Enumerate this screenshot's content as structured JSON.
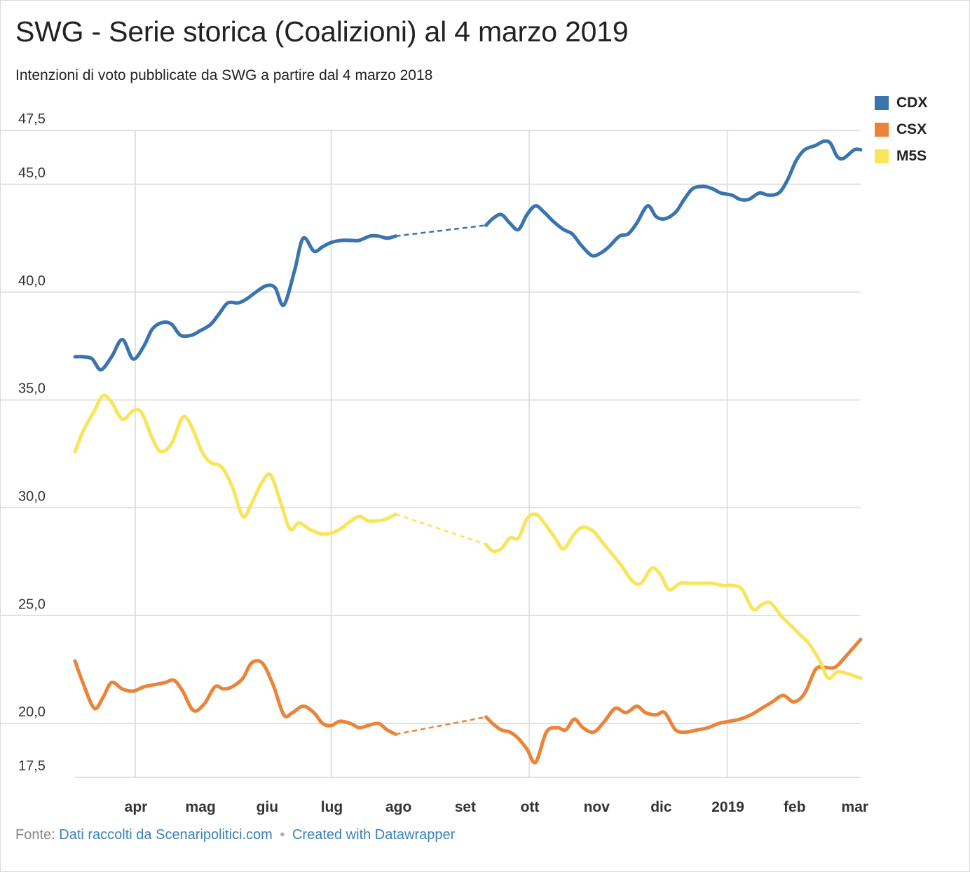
{
  "title": "SWG - Serie storica (Coalizioni) al 4 marzo 2019",
  "subtitle": "Intenzioni di voto pubblicate da SWG a partire dal 4 marzo 2018",
  "footer": {
    "source_label": "Fonte:",
    "source_text": "Dati raccolti da Scenaripolitici.com",
    "separator": "•",
    "credit_text": "Created with Datawrapper"
  },
  "colors": {
    "CDX": "#3a74ae",
    "CSX": "#ea8438",
    "M5S": "#f9e55c",
    "grid": "#d9d9d9",
    "axis_text": "#333333"
  },
  "chart_data": {
    "type": "line",
    "title": "SWG - Serie storica (Coalizioni) al 4 marzo 2019",
    "subtitle": "Intenzioni di voto pubblicate da SWG a partire dal 4 marzo 2018",
    "xlabel": "",
    "ylabel": "",
    "x_range": [
      "2018-03-04",
      "2019-03-04"
    ],
    "ylim": [
      17.5,
      47.5
    ],
    "y_ticks": [
      {
        "value": 47.5,
        "label": "47,5"
      },
      {
        "value": 45.0,
        "label": "45,0"
      },
      {
        "value": 40.0,
        "label": "40,0"
      },
      {
        "value": 35.0,
        "label": "35,0"
      },
      {
        "value": 30.0,
        "label": "30,0"
      },
      {
        "value": 25.0,
        "label": "25,0"
      },
      {
        "value": 20.0,
        "label": "20,0"
      },
      {
        "value": 17.5,
        "label": "17,5"
      }
    ],
    "x_ticks": [
      {
        "date": "2018-04-01",
        "label": "apr",
        "grid": true
      },
      {
        "date": "2018-05-01",
        "label": "mag",
        "grid": false
      },
      {
        "date": "2018-06-01",
        "label": "giu",
        "grid": false
      },
      {
        "date": "2018-07-01",
        "label": "lug",
        "grid": true
      },
      {
        "date": "2018-08-01",
        "label": "ago",
        "grid": false
      },
      {
        "date": "2018-09-01",
        "label": "set",
        "grid": false
      },
      {
        "date": "2018-10-01",
        "label": "ott",
        "grid": true
      },
      {
        "date": "2018-11-01",
        "label": "nov",
        "grid": false
      },
      {
        "date": "2018-12-01",
        "label": "dic",
        "grid": false
      },
      {
        "date": "2019-01-01",
        "label": "2019",
        "grid": true
      },
      {
        "date": "2019-02-01",
        "label": "feb",
        "grid": false
      },
      {
        "date": "2019-03-01",
        "label": "mar",
        "grid": false
      }
    ],
    "grid": true,
    "legend": "top-right",
    "gap": {
      "start": "2018-07-31",
      "end": "2018-09-11",
      "style": "dashed"
    },
    "series": [
      {
        "name": "CDX",
        "color": "#3a74ae",
        "points": [
          [
            "2018-03-04",
            37.0
          ],
          [
            "2018-03-08",
            37.0
          ],
          [
            "2018-03-12",
            36.9
          ],
          [
            "2018-03-16",
            36.4
          ],
          [
            "2018-03-21",
            37.0
          ],
          [
            "2018-03-26",
            37.8
          ],
          [
            "2018-03-31",
            36.9
          ],
          [
            "2018-04-05",
            37.5
          ],
          [
            "2018-04-09",
            38.3
          ],
          [
            "2018-04-14",
            38.6
          ],
          [
            "2018-04-18",
            38.5
          ],
          [
            "2018-04-22",
            38.0
          ],
          [
            "2018-04-27",
            38.0
          ],
          [
            "2018-05-01",
            38.2
          ],
          [
            "2018-05-06",
            38.5
          ],
          [
            "2018-05-10",
            39.0
          ],
          [
            "2018-05-14",
            39.5
          ],
          [
            "2018-05-19",
            39.5
          ],
          [
            "2018-05-23",
            39.7
          ],
          [
            "2018-05-27",
            40.0
          ],
          [
            "2018-06-01",
            40.3
          ],
          [
            "2018-06-05",
            40.2
          ],
          [
            "2018-06-09",
            39.4
          ],
          [
            "2018-06-14",
            41.0
          ],
          [
            "2018-06-18",
            42.5
          ],
          [
            "2018-06-23",
            41.9
          ],
          [
            "2018-06-27",
            42.1
          ],
          [
            "2018-07-01",
            42.3
          ],
          [
            "2018-07-06",
            42.4
          ],
          [
            "2018-07-10",
            42.4
          ],
          [
            "2018-07-14",
            42.4
          ],
          [
            "2018-07-19",
            42.6
          ],
          [
            "2018-07-23",
            42.6
          ],
          [
            "2018-07-27",
            42.5
          ],
          [
            "2018-07-31",
            42.6
          ],
          [
            "2018-09-11",
            43.1
          ],
          [
            "2018-09-14",
            43.4
          ],
          [
            "2018-09-18",
            43.6
          ],
          [
            "2018-09-22",
            43.2
          ],
          [
            "2018-09-26",
            42.9
          ],
          [
            "2018-09-30",
            43.6
          ],
          [
            "2018-10-04",
            44.0
          ],
          [
            "2018-10-08",
            43.7
          ],
          [
            "2018-10-12",
            43.3
          ],
          [
            "2018-10-17",
            42.9
          ],
          [
            "2018-10-21",
            42.7
          ],
          [
            "2018-10-25",
            42.2
          ],
          [
            "2018-10-30",
            41.7
          ],
          [
            "2018-11-03",
            41.8
          ],
          [
            "2018-11-07",
            42.1
          ],
          [
            "2018-11-12",
            42.6
          ],
          [
            "2018-11-16",
            42.7
          ],
          [
            "2018-11-20",
            43.2
          ],
          [
            "2018-11-25",
            44.0
          ],
          [
            "2018-11-29",
            43.5
          ],
          [
            "2018-12-03",
            43.4
          ],
          [
            "2018-12-08",
            43.7
          ],
          [
            "2018-12-12",
            44.3
          ],
          [
            "2018-12-16",
            44.8
          ],
          [
            "2018-12-21",
            44.9
          ],
          [
            "2018-12-25",
            44.8
          ],
          [
            "2018-12-29",
            44.6
          ],
          [
            "2019-01-03",
            44.5
          ],
          [
            "2019-01-07",
            44.3
          ],
          [
            "2019-01-11",
            44.3
          ],
          [
            "2019-01-16",
            44.6
          ],
          [
            "2019-01-20",
            44.5
          ],
          [
            "2019-01-25",
            44.6
          ],
          [
            "2019-01-29",
            45.2
          ],
          [
            "2019-02-02",
            46.1
          ],
          [
            "2019-02-06",
            46.6
          ],
          [
            "2019-02-11",
            46.8
          ],
          [
            "2019-02-15",
            47.0
          ],
          [
            "2019-02-18",
            46.9
          ],
          [
            "2019-02-21",
            46.3
          ],
          [
            "2019-02-24",
            46.2
          ],
          [
            "2019-03-01",
            46.6
          ],
          [
            "2019-03-04",
            46.6
          ]
        ]
      },
      {
        "name": "CSX",
        "color": "#ea8438",
        "points": [
          [
            "2018-03-04",
            22.9
          ],
          [
            "2018-03-08",
            21.8
          ],
          [
            "2018-03-13",
            20.7
          ],
          [
            "2018-03-17",
            21.2
          ],
          [
            "2018-03-21",
            21.9
          ],
          [
            "2018-03-26",
            21.6
          ],
          [
            "2018-03-31",
            21.5
          ],
          [
            "2018-04-05",
            21.7
          ],
          [
            "2018-04-10",
            21.8
          ],
          [
            "2018-04-15",
            21.9
          ],
          [
            "2018-04-19",
            22.0
          ],
          [
            "2018-04-23",
            21.5
          ],
          [
            "2018-04-28",
            20.6
          ],
          [
            "2018-05-03",
            20.9
          ],
          [
            "2018-05-08",
            21.7
          ],
          [
            "2018-05-12",
            21.6
          ],
          [
            "2018-05-16",
            21.7
          ],
          [
            "2018-05-21",
            22.1
          ],
          [
            "2018-05-25",
            22.8
          ],
          [
            "2018-05-30",
            22.8
          ],
          [
            "2018-06-04",
            21.8
          ],
          [
            "2018-06-09",
            20.4
          ],
          [
            "2018-06-13",
            20.5
          ],
          [
            "2018-06-18",
            20.8
          ],
          [
            "2018-06-23",
            20.5
          ],
          [
            "2018-06-27",
            20.0
          ],
          [
            "2018-07-01",
            19.9
          ],
          [
            "2018-07-05",
            20.1
          ],
          [
            "2018-07-10",
            20.0
          ],
          [
            "2018-07-14",
            19.8
          ],
          [
            "2018-07-18",
            19.9
          ],
          [
            "2018-07-23",
            20.0
          ],
          [
            "2018-07-27",
            19.7
          ],
          [
            "2018-07-31",
            19.5
          ],
          [
            "2018-09-11",
            20.3
          ],
          [
            "2018-09-14",
            20.0
          ],
          [
            "2018-09-18",
            19.7
          ],
          [
            "2018-09-22",
            19.6
          ],
          [
            "2018-09-26",
            19.3
          ],
          [
            "2018-09-30",
            18.8
          ],
          [
            "2018-10-04",
            18.2
          ],
          [
            "2018-10-09",
            19.6
          ],
          [
            "2018-10-14",
            19.8
          ],
          [
            "2018-10-18",
            19.7
          ],
          [
            "2018-10-22",
            20.2
          ],
          [
            "2018-10-26",
            19.8
          ],
          [
            "2018-10-31",
            19.6
          ],
          [
            "2018-11-05",
            20.1
          ],
          [
            "2018-11-10",
            20.7
          ],
          [
            "2018-11-15",
            20.5
          ],
          [
            "2018-11-20",
            20.8
          ],
          [
            "2018-11-24",
            20.5
          ],
          [
            "2018-11-29",
            20.4
          ],
          [
            "2018-12-03",
            20.5
          ],
          [
            "2018-12-08",
            19.7
          ],
          [
            "2018-12-13",
            19.6
          ],
          [
            "2018-12-18",
            19.7
          ],
          [
            "2018-12-23",
            19.8
          ],
          [
            "2018-12-28",
            20.0
          ],
          [
            "2019-01-02",
            20.1
          ],
          [
            "2019-01-07",
            20.2
          ],
          [
            "2019-01-12",
            20.4
          ],
          [
            "2019-01-17",
            20.7
          ],
          [
            "2019-01-22",
            21.0
          ],
          [
            "2019-01-27",
            21.3
          ],
          [
            "2019-02-01",
            21.0
          ],
          [
            "2019-02-06",
            21.4
          ],
          [
            "2019-02-11",
            22.5
          ],
          [
            "2019-02-15",
            22.6
          ],
          [
            "2019-02-20",
            22.6
          ],
          [
            "2019-02-25",
            23.1
          ],
          [
            "2019-03-04",
            23.9
          ]
        ]
      },
      {
        "name": "M5S",
        "color": "#f9e55c",
        "points": [
          [
            "2018-03-04",
            32.6
          ],
          [
            "2018-03-08",
            33.6
          ],
          [
            "2018-03-13",
            34.5
          ],
          [
            "2018-03-17",
            35.2
          ],
          [
            "2018-03-21",
            34.9
          ],
          [
            "2018-03-26",
            34.1
          ],
          [
            "2018-03-31",
            34.5
          ],
          [
            "2018-04-04",
            34.4
          ],
          [
            "2018-04-09",
            33.2
          ],
          [
            "2018-04-13",
            32.6
          ],
          [
            "2018-04-18",
            33.0
          ],
          [
            "2018-04-23",
            34.2
          ],
          [
            "2018-04-27",
            33.8
          ],
          [
            "2018-05-02",
            32.6
          ],
          [
            "2018-05-06",
            32.1
          ],
          [
            "2018-05-11",
            31.9
          ],
          [
            "2018-05-16",
            31.0
          ],
          [
            "2018-05-21",
            29.6
          ],
          [
            "2018-05-25",
            30.2
          ],
          [
            "2018-05-30",
            31.2
          ],
          [
            "2018-06-03",
            31.5
          ],
          [
            "2018-06-08",
            30.1
          ],
          [
            "2018-06-12",
            29.0
          ],
          [
            "2018-06-16",
            29.3
          ],
          [
            "2018-06-21",
            29.0
          ],
          [
            "2018-06-26",
            28.8
          ],
          [
            "2018-06-30",
            28.8
          ],
          [
            "2018-07-05",
            29.0
          ],
          [
            "2018-07-09",
            29.3
          ],
          [
            "2018-07-14",
            29.6
          ],
          [
            "2018-07-18",
            29.4
          ],
          [
            "2018-07-23",
            29.4
          ],
          [
            "2018-07-27",
            29.5
          ],
          [
            "2018-07-31",
            29.7
          ],
          [
            "2018-09-11",
            28.3
          ],
          [
            "2018-09-14",
            28.0
          ],
          [
            "2018-09-18",
            28.1
          ],
          [
            "2018-09-22",
            28.6
          ],
          [
            "2018-09-26",
            28.6
          ],
          [
            "2018-09-30",
            29.5
          ],
          [
            "2018-10-04",
            29.7
          ],
          [
            "2018-10-08",
            29.3
          ],
          [
            "2018-10-13",
            28.6
          ],
          [
            "2018-10-17",
            28.1
          ],
          [
            "2018-10-22",
            28.8
          ],
          [
            "2018-10-26",
            29.1
          ],
          [
            "2018-10-31",
            28.9
          ],
          [
            "2018-11-04",
            28.4
          ],
          [
            "2018-11-09",
            27.8
          ],
          [
            "2018-11-13",
            27.3
          ],
          [
            "2018-11-18",
            26.6
          ],
          [
            "2018-11-22",
            26.5
          ],
          [
            "2018-11-27",
            27.2
          ],
          [
            "2018-12-01",
            26.9
          ],
          [
            "2018-12-05",
            26.2
          ],
          [
            "2018-12-10",
            26.5
          ],
          [
            "2018-12-15",
            26.5
          ],
          [
            "2018-12-20",
            26.5
          ],
          [
            "2018-12-25",
            26.5
          ],
          [
            "2018-12-30",
            26.4
          ],
          [
            "2019-01-04",
            26.4
          ],
          [
            "2019-01-08",
            26.2
          ],
          [
            "2019-01-13",
            25.3
          ],
          [
            "2019-01-17",
            25.5
          ],
          [
            "2019-01-21",
            25.6
          ],
          [
            "2019-01-26",
            25.0
          ],
          [
            "2019-01-30",
            24.6
          ],
          [
            "2019-02-04",
            24.1
          ],
          [
            "2019-02-08",
            23.7
          ],
          [
            "2019-02-13",
            22.9
          ],
          [
            "2019-02-17",
            22.1
          ],
          [
            "2019-02-22",
            22.4
          ],
          [
            "2019-03-04",
            22.1
          ]
        ]
      }
    ]
  }
}
